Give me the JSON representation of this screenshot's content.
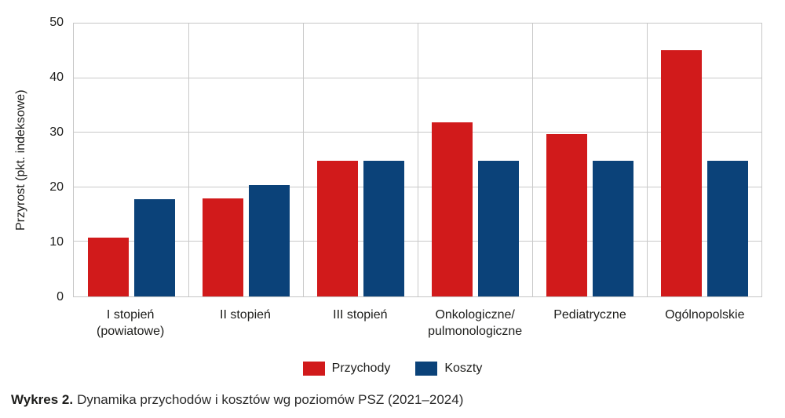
{
  "chart_data": {
    "type": "bar",
    "title": "",
    "xlabel": "",
    "ylabel": "Przyrost (pkt. indeksowe)",
    "ylim": [
      0,
      50
    ],
    "yticks": [
      0,
      10,
      20,
      30,
      40,
      50
    ],
    "grid": true,
    "legend_position": "bottom",
    "categories": [
      "I stopień (powiatowe)",
      "II stopień",
      "III stopień",
      "Onkologiczne/\npulmonologiczne",
      "Pediatryczne",
      "Ogólnopolskie"
    ],
    "series": [
      {
        "name": "Przychody",
        "color": "#d11a1b",
        "values": [
          10.8,
          18.0,
          24.8,
          31.9,
          29.8,
          45.1
        ]
      },
      {
        "name": "Koszty",
        "color": "#0b4279",
        "values": [
          17.8,
          20.4,
          24.8,
          24.8,
          24.8,
          24.8
        ]
      }
    ],
    "colors": {
      "grid": "#c9c9c9",
      "text": "#1d1d1b"
    }
  },
  "caption": {
    "label": "Wykres 2.",
    "text": "Dynamika przychodów i kosztów wg poziomów PSZ (2021–2024)"
  }
}
